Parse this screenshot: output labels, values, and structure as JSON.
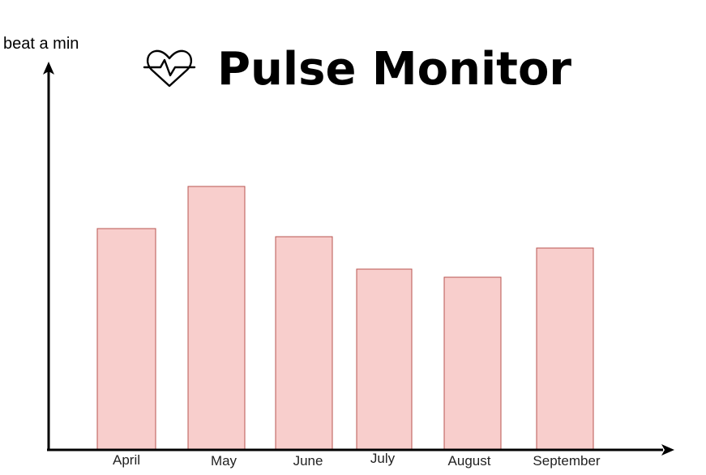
{
  "chart_data": {
    "type": "bar",
    "title": "Pulse Monitor",
    "title_icon": "heart-pulse-icon",
    "ylabel": "beat a min",
    "xlabel": "",
    "categories": [
      "April",
      "May",
      "June",
      "July",
      "August",
      "September"
    ],
    "values": [
      68,
      81,
      65.5,
      55.5,
      53,
      62
    ],
    "ylim": [
      0,
      120
    ],
    "grid": false,
    "legend": "none",
    "colors": {
      "bar_fill": "#f8cecc",
      "bar_stroke": "#b85450",
      "axis": "#000000"
    }
  }
}
